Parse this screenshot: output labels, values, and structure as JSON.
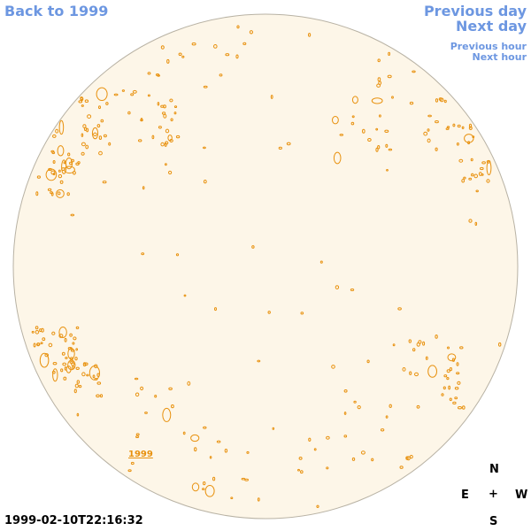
{
  "nav": {
    "back": "Back to 1999",
    "previous_day": "Previous day",
    "next_day": "Next day",
    "previous_hour": "Previous hour",
    "next_hour": "Next hour"
  },
  "timestamp": "1999-02-10T22:16:32",
  "year_label": "1999",
  "compass": {
    "north": "N",
    "east": "E",
    "center": "+",
    "west": "W",
    "south": "S"
  },
  "colors": {
    "disk_fill": "#fdf6e8",
    "disk_stroke": "#b8b2a4",
    "contour": "#e8910e",
    "link": "#6d97e1"
  }
}
